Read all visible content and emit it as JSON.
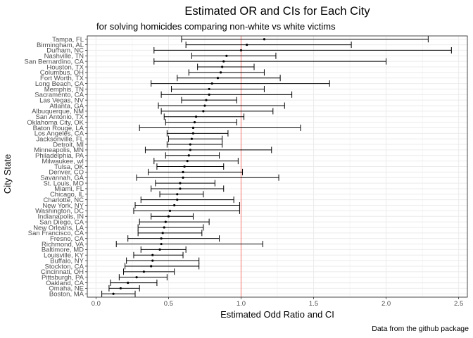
{
  "chart_data": {
    "type": "scatter",
    "variant": "forest-plot",
    "title": "Estimated OR and CIs for Each City",
    "subtitle": "for solving homicides comparing non-white vs white victims",
    "caption": "Data from the github package",
    "xlabel": "Estimated Odd Ratio and CI",
    "ylabel": "City State",
    "xlim": [
      -0.06,
      2.56
    ],
    "x_ticks": [
      {
        "value": 0,
        "label": "0.0"
      },
      {
        "value": 0.5,
        "label": "0.5"
      },
      {
        "value": 1,
        "label": "1.0"
      },
      {
        "value": 1.5,
        "label": "1.5"
      },
      {
        "value": 2,
        "label": "2.0"
      },
      {
        "value": 2.5,
        "label": "2.5"
      }
    ],
    "reference_line": {
      "x": 1,
      "color": "#f8766d"
    },
    "grid": true,
    "point_color": "#000000",
    "panel_border_color": "#333333",
    "gridline_color": "#ebebeb",
    "cities": [
      {
        "label": "Tampa, FL",
        "or": 1.16,
        "lower": 0.59,
        "upper": 2.29
      },
      {
        "label": "Birmingham, AL",
        "or": 1.04,
        "lower": 0.62,
        "upper": 1.76
      },
      {
        "label": "Durham, NC",
        "or": 1.0,
        "lower": 0.4,
        "upper": 2.45
      },
      {
        "label": "Nashville, TN",
        "or": 0.9,
        "lower": 0.66,
        "upper": 1.24
      },
      {
        "label": "San Bernardino, CA",
        "or": 0.88,
        "lower": 0.4,
        "upper": 2.0
      },
      {
        "label": "Houston, TX",
        "or": 0.87,
        "lower": 0.7,
        "upper": 1.09
      },
      {
        "label": "Columbus, OH",
        "or": 0.86,
        "lower": 0.64,
        "upper": 1.16
      },
      {
        "label": "Fort Worth, TX",
        "or": 0.84,
        "lower": 0.56,
        "upper": 1.27
      },
      {
        "label": "Long Beach, CA",
        "or": 0.8,
        "lower": 0.38,
        "upper": 1.61
      },
      {
        "label": "Memphis, TN",
        "or": 0.78,
        "lower": 0.52,
        "upper": 1.16
      },
      {
        "label": "Sacramento, CA",
        "or": 0.78,
        "lower": 0.45,
        "upper": 1.35
      },
      {
        "label": "Las Vegas, NV",
        "or": 0.76,
        "lower": 0.59,
        "upper": 0.97
      },
      {
        "label": "Atlanta, GA",
        "or": 0.75,
        "lower": 0.43,
        "upper": 1.3
      },
      {
        "label": "Albuquerque, NM",
        "or": 0.74,
        "lower": 0.45,
        "upper": 1.22
      },
      {
        "label": "San Antonio, TX",
        "or": 0.69,
        "lower": 0.47,
        "upper": 1.02
      },
      {
        "label": "Oklahoma City, OK",
        "or": 0.68,
        "lower": 0.48,
        "upper": 0.97
      },
      {
        "label": "Baton Rouge, LA",
        "or": 0.67,
        "lower": 0.3,
        "upper": 1.41
      },
      {
        "label": "Los Angeles, CA",
        "or": 0.67,
        "lower": 0.49,
        "upper": 0.91
      },
      {
        "label": "Jacksonville, FL",
        "or": 0.66,
        "lower": 0.5,
        "upper": 0.87
      },
      {
        "label": "Detroit, MI",
        "or": 0.65,
        "lower": 0.49,
        "upper": 0.87
      },
      {
        "label": "Minneapolis, MN",
        "or": 0.65,
        "lower": 0.34,
        "upper": 1.21
      },
      {
        "label": "Philadelphia, PA",
        "or": 0.64,
        "lower": 0.48,
        "upper": 0.85
      },
      {
        "label": "Milwaukee, wI",
        "or": 0.63,
        "lower": 0.4,
        "upper": 0.98
      },
      {
        "label": "Tulsa, OK",
        "or": 0.61,
        "lower": 0.42,
        "upper": 0.88
      },
      {
        "label": "Denver, CO",
        "or": 0.6,
        "lower": 0.36,
        "upper": 1.01
      },
      {
        "label": "Savannah, GA",
        "or": 0.6,
        "lower": 0.28,
        "upper": 1.26
      },
      {
        "label": "St. Louis, MO",
        "or": 0.58,
        "lower": 0.41,
        "upper": 0.82
      },
      {
        "label": "Miami, FL",
        "or": 0.58,
        "lower": 0.38,
        "upper": 0.88
      },
      {
        "label": "Chicago, IL",
        "or": 0.56,
        "lower": 0.44,
        "upper": 0.74
      },
      {
        "label": "Charlotte, NC",
        "or": 0.56,
        "lower": 0.31,
        "upper": 0.95
      },
      {
        "label": "New York, NY",
        "or": 0.54,
        "lower": 0.27,
        "upper": 0.99
      },
      {
        "label": "Washington, DC",
        "or": 0.51,
        "lower": 0.26,
        "upper": 0.99
      },
      {
        "label": "Indianapolis, IN",
        "or": 0.5,
        "lower": 0.38,
        "upper": 0.67
      },
      {
        "label": "San Diego, CA",
        "or": 0.48,
        "lower": 0.3,
        "upper": 0.78
      },
      {
        "label": "New Orleans, LA",
        "or": 0.47,
        "lower": 0.29,
        "upper": 0.74
      },
      {
        "label": "San Francisco, CA",
        "or": 0.46,
        "lower": 0.29,
        "upper": 0.73
      },
      {
        "label": "Fresno, CA",
        "or": 0.45,
        "lower": 0.22,
        "upper": 0.85
      },
      {
        "label": "Richmond, VA",
        "or": 0.45,
        "lower": 0.14,
        "upper": 1.15
      },
      {
        "label": "Baltimore, MD",
        "or": 0.44,
        "lower": 0.31,
        "upper": 0.62
      },
      {
        "label": "Louisville, KY",
        "or": 0.39,
        "lower": 0.26,
        "upper": 0.6
      },
      {
        "label": "Buffalo, NY",
        "or": 0.39,
        "lower": 0.21,
        "upper": 0.71
      },
      {
        "label": "Stockton, CA",
        "or": 0.38,
        "lower": 0.2,
        "upper": 0.71
      },
      {
        "label": "Cincinnati, OH",
        "or": 0.33,
        "lower": 0.19,
        "upper": 0.54
      },
      {
        "label": "Pittsburgh, PA",
        "or": 0.28,
        "lower": 0.16,
        "upper": 0.49
      },
      {
        "label": "Oakland, CA",
        "or": 0.22,
        "lower": 0.1,
        "upper": 0.42
      },
      {
        "label": "Omaha, NE",
        "or": 0.17,
        "lower": 0.09,
        "upper": 0.3
      },
      {
        "label": "Boston, MA",
        "or": 0.12,
        "lower": 0.04,
        "upper": 0.27
      }
    ]
  }
}
